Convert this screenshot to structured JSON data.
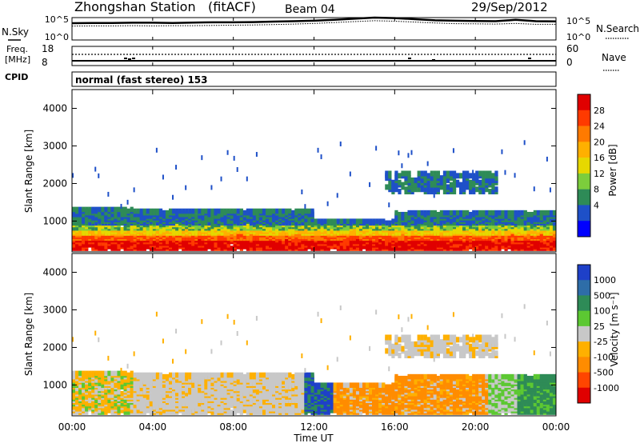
{
  "header": {
    "station": "Zhongshan Station",
    "mode": "(fitACF)",
    "beam": "Beam 04",
    "date": "29/Sep/2012"
  },
  "noise_panel": {
    "left_label": "N.Sky",
    "right_label": "N.Search",
    "left_ticks": [
      "10^5",
      "10^0"
    ],
    "right_ticks": [
      "10^5",
      "10^0"
    ],
    "sky_level": [
      0.75,
      0.76,
      0.76,
      0.77,
      0.77,
      0.76,
      0.78,
      0.79,
      0.79,
      0.8,
      0.82,
      0.84,
      0.86,
      0.9,
      0.95,
      1.0,
      0.98,
      0.93,
      0.88,
      0.86,
      0.85,
      0.84,
      0.9,
      0.84,
      0.83
    ],
    "search_level": [
      0.62,
      0.63,
      0.63,
      0.64,
      0.63,
      0.64,
      0.64,
      0.65,
      0.66,
      0.67,
      0.69,
      0.71,
      0.74,
      0.78,
      0.82,
      0.86,
      0.84,
      0.8,
      0.76,
      0.73,
      0.72,
      0.71,
      0.74,
      0.7,
      0.7
    ]
  },
  "freq_panel": {
    "left_label_1": "Freq.",
    "left_label_2": "[MHz]",
    "right_label": "Nave",
    "left_ticks": [
      "18",
      "8"
    ],
    "right_ticks": [
      "60",
      "0"
    ]
  },
  "cpid": {
    "label": "CPID",
    "text": "normal (fast stereo) 153"
  },
  "chart_data": [
    {
      "type": "heatmap",
      "name": "power",
      "ylabel": "Slant Range [km]",
      "xlabel": "",
      "yticks": [
        "4000",
        "3000",
        "2000",
        "1000"
      ],
      "ylim": [
        180,
        4500
      ],
      "xlim": [
        "00:00",
        "24:00"
      ],
      "colorbar": {
        "label": "Power [dB]",
        "ticks": [
          "28",
          "24",
          "20",
          "16",
          "12",
          "8",
          "4"
        ],
        "colors": [
          "#e00000",
          "#ff3a00",
          "#ff7a00",
          "#ffb000",
          "#e6d800",
          "#7ccd3c",
          "#2e8b57",
          "#1e50c8",
          "#0000ff"
        ]
      }
    },
    {
      "type": "heatmap",
      "name": "velocity",
      "ylabel": "Slant Range [km]",
      "xlabel": "Time UT",
      "yticks": [
        "4000",
        "3000",
        "2000",
        "1000"
      ],
      "ylim": [
        180,
        4500
      ],
      "xlim": [
        "00:00",
        "24:00"
      ],
      "xticks": [
        "00:00",
        "04:00",
        "08:00",
        "12:00",
        "16:00",
        "20:00",
        "00:00"
      ],
      "colorbar": {
        "label": "Velocity [m s⁻¹]",
        "ticks": [
          "1000",
          "500",
          "100",
          "25",
          "-25",
          "-100",
          "-500",
          "-1000"
        ],
        "colors": [
          "#1e40c8",
          "#2e6da8",
          "#2e8b57",
          "#5cc832",
          "#c8c8c8",
          "#ffb000",
          "#ff8c00",
          "#ff4500",
          "#e00000"
        ]
      }
    }
  ]
}
